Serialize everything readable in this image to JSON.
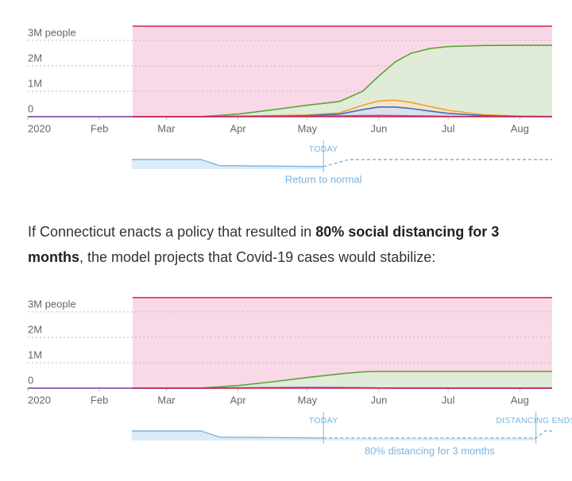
{
  "chart_data": [
    {
      "type": "area",
      "xlim": [
        0,
        227
      ],
      "xticks": [
        {
          "value": 0,
          "label": "2020"
        },
        {
          "value": 31,
          "label": "Feb"
        },
        {
          "value": 60,
          "label": "Mar"
        },
        {
          "value": 91,
          "label": "Apr"
        },
        {
          "value": 121,
          "label": "May"
        },
        {
          "value": 152,
          "label": "Jun"
        },
        {
          "value": 182,
          "label": "Jul"
        },
        {
          "value": 213,
          "label": "Aug"
        }
      ],
      "ylim": [
        0,
        3560000
      ],
      "yticks": [
        {
          "value": 3000000,
          "label": "3M people"
        },
        {
          "value": 2000000,
          "label": "2M"
        },
        {
          "value": 1000000,
          "label": "1M"
        },
        0
      ],
      "grid": true,
      "x": [
        0,
        60,
        74,
        91,
        106,
        121,
        135,
        145,
        152,
        159,
        166,
        174,
        182,
        197,
        213,
        227
      ],
      "series": [
        {
          "color": "#5da238",
          "fill": "#dcf0d4",
          "values": [
            0,
            0,
            0,
            100000,
            270000,
            450000,
            600000,
            1000000,
            1600000,
            2150000,
            2500000,
            2680000,
            2760000,
            2800000,
            2810000,
            2810000
          ]
        },
        {
          "color": "#f0a030",
          "fill": "#f6e3c8",
          "values": [
            0,
            0,
            0,
            20000,
            40000,
            70000,
            150000,
            450000,
            620000,
            650000,
            560000,
            400000,
            250000,
            80000,
            20000,
            10000
          ]
        },
        {
          "color": "#3a6fc0",
          "fill": "#d6dff0",
          "values": [
            0,
            0,
            0,
            10000,
            20000,
            40000,
            100000,
            280000,
            380000,
            380000,
            320000,
            220000,
            130000,
            40000,
            10000,
            5000
          ]
        },
        {
          "color": "#9b59b6",
          "fill": "#e6d6ee",
          "values": [
            0,
            0,
            0,
            5000,
            10000,
            20000,
            30000,
            45000,
            50000,
            45000,
            35000,
            25000,
            15000,
            5000,
            2000,
            1000
          ]
        }
      ],
      "distancing": {
        "color": "#7ab4e0",
        "fill": "#dcebf8",
        "ylim": [
          0,
          100
        ],
        "x": [
          45,
          75,
          83,
          128,
          139,
          227
        ],
        "values": [
          0,
          0,
          70,
          80,
          0,
          0
        ]
      },
      "annotations": [
        {
          "x": 128,
          "text": "TODAY"
        }
      ],
      "note": "Return to normal"
    },
    {
      "type": "area",
      "xlim": [
        0,
        227
      ],
      "xticks": [
        {
          "value": 0,
          "label": "2020"
        },
        {
          "value": 31,
          "label": "Feb"
        },
        {
          "value": 60,
          "label": "Mar"
        },
        {
          "value": 91,
          "label": "Apr"
        },
        {
          "value": 121,
          "label": "May"
        },
        {
          "value": 152,
          "label": "Jun"
        },
        {
          "value": 182,
          "label": "Jul"
        },
        {
          "value": 213,
          "label": "Aug"
        }
      ],
      "ylim": [
        0,
        3560000
      ],
      "yticks": [
        {
          "value": 3000000,
          "label": "3M people"
        },
        {
          "value": 2000000,
          "label": "2M"
        },
        {
          "value": 1000000,
          "label": "1M"
        },
        0
      ],
      "grid": true,
      "x": [
        0,
        60,
        74,
        91,
        106,
        121,
        135,
        145,
        152,
        159,
        166,
        174,
        182,
        197,
        213,
        227
      ],
      "series": [
        {
          "color": "#5da238",
          "fill": "#dcf0d4",
          "values": [
            0,
            0,
            0,
            100000,
            250000,
            420000,
            560000,
            640000,
            660000,
            660000,
            660000,
            660000,
            660000,
            660000,
            660000,
            660000
          ]
        },
        {
          "color": "#3a6fc0",
          "fill": "#d6dff0",
          "values": [
            0,
            0,
            0,
            8000,
            15000,
            22000,
            18000,
            10000,
            6000,
            3000,
            2000,
            1000,
            1000,
            0,
            0,
            0
          ]
        },
        {
          "color": "#9b59b6",
          "fill": "#e6d6ee",
          "values": [
            0,
            0,
            0,
            10000,
            20000,
            30000,
            25000,
            15000,
            8000,
            4000,
            2000,
            1000,
            1000,
            0,
            0,
            0
          ]
        }
      ],
      "distancing": {
        "color": "#7ab4e0",
        "fill": "#dcebf8",
        "ylim": [
          0,
          100
        ],
        "x": [
          45,
          75,
          83,
          128,
          220,
          224,
          227
        ],
        "values": [
          0,
          0,
          70,
          80,
          80,
          0,
          0
        ]
      },
      "annotations": [
        {
          "x": 128,
          "text": "TODAY"
        },
        {
          "x": 220,
          "text": "DISTANCING ENDS"
        }
      ],
      "note": "80% distancing for 3 months"
    }
  ],
  "paragraph": [
    "If Connecticut enacts a policy that resulted in ",
    "80% social distancing for 3 months",
    ", the model projects that Covid-19 cases would stabilize:"
  ]
}
